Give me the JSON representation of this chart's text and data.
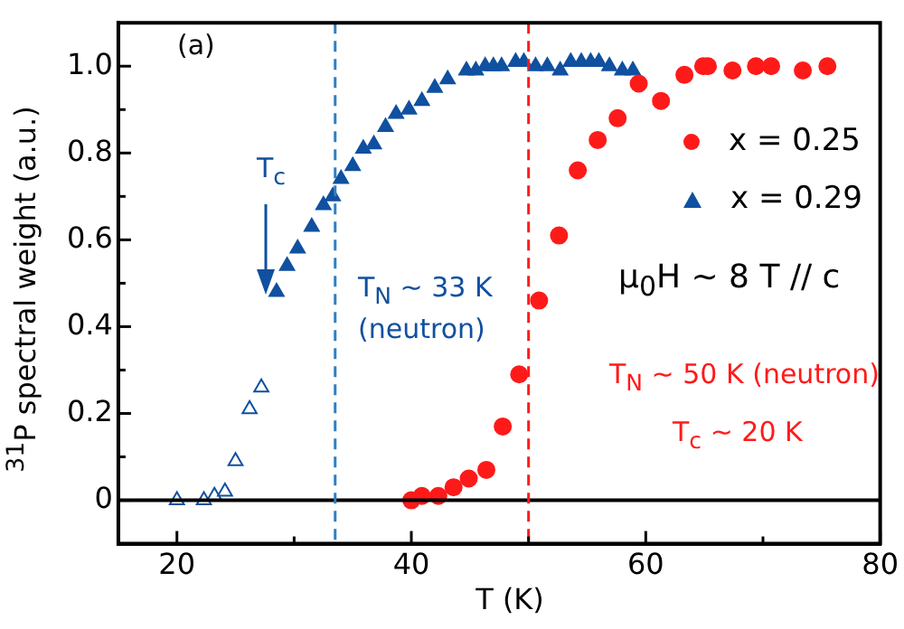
{
  "chart_data": {
    "type": "scatter",
    "xlabel": "T (K)",
    "ylabel": "$^{31}$P spectral weight (a.u.)",
    "xlim": [
      15,
      80
    ],
    "xticks": [
      20,
      {
        "value": 30,
        "label": null
      },
      40,
      {
        "value": 50,
        "label": null
      },
      60,
      {
        "value": 70,
        "label": null
      },
      80
    ],
    "ylim": [
      -0.1,
      1.1
    ],
    "yticks": [
      {
        "value": -0.1,
        "label": null
      },
      0,
      {
        "value": 0.1,
        "label": null
      },
      0.2,
      {
        "value": 0.3,
        "label": null
      },
      0.4,
      {
        "value": 0.5,
        "label": null
      },
      0.6,
      {
        "value": 0.7,
        "label": null
      },
      0.8,
      {
        "value": 0.9,
        "label": null
      },
      {
        "value": 1,
        "label": "1.0"
      }
    ],
    "grid": false,
    "legend": "right",
    "series": [
      {
        "name": "x = 0.25",
        "color": "#ff1a1a",
        "marker": "circle",
        "x": [
          40.0,
          40.9,
          42.3,
          43.6,
          44.9,
          46.4,
          47.8,
          49.2,
          50.9,
          52.6,
          54.2,
          55.9,
          57.6,
          59.4,
          61.3,
          63.3,
          64.9,
          65.3,
          67.4,
          69.4,
          70.7,
          73.4,
          75.5
        ],
        "values": [
          0.0,
          0.01,
          0.01,
          0.03,
          0.05,
          0.07,
          0.17,
          0.29,
          0.46,
          0.61,
          0.76,
          0.83,
          0.88,
          0.96,
          0.92,
          0.98,
          1.0,
          1.0,
          0.99,
          1.0,
          1.0,
          0.99,
          1.0
        ]
      },
      {
        "name": "x = 0.29",
        "color": "#1050a0",
        "marker": "triangle",
        "x": [
          28.5,
          29.4,
          30.3,
          31.5,
          32.5,
          33.3,
          34.0,
          35.0,
          35.9,
          36.8,
          37.8,
          38.7,
          39.8,
          40.9,
          42.0,
          43.1,
          44.7,
          45.5,
          46.3,
          47.0,
          47.7,
          48.9,
          49.6,
          50.6,
          51.6,
          52.7,
          53.6,
          54.5,
          55.3,
          56.0,
          56.9,
          58.0,
          58.9
        ],
        "values": [
          0.48,
          0.54,
          0.58,
          0.63,
          0.68,
          0.7,
          0.74,
          0.77,
          0.81,
          0.82,
          0.86,
          0.89,
          0.9,
          0.92,
          0.95,
          0.97,
          0.99,
          0.99,
          1.0,
          1.0,
          1.0,
          1.01,
          1.01,
          1.0,
          1.0,
          0.99,
          1.01,
          1.01,
          1.01,
          1.01,
          1.0,
          0.99,
          0.99
        ]
      },
      {
        "color": "#1050a0",
        "marker": "triangle",
        "x": [
          20.0,
          22.3,
          23.2,
          24.1,
          25.0,
          26.2,
          27.2
        ],
        "values": [
          0.0,
          0.0,
          0.01,
          0.02,
          0.09,
          0.21,
          0.26
        ]
      }
    ],
    "ref_lines": [
      {
        "axis": "y",
        "value": 0,
        "color": "#000000",
        "line_style": "solid"
      },
      {
        "axis": "x",
        "value": 33.5,
        "color": "#2f7fc1",
        "line_style": "dashed"
      },
      {
        "axis": "x",
        "value": 50,
        "color": "#ff1a1a",
        "line_style": "dashed"
      }
    ],
    "annotations": [
      "(a)",
      "T$_{c}$",
      "T$_{N}$ ~ 33 K",
      "(neutron)",
      "μ$_{0}$H ~ 8 T // c",
      "T$_{N}$ ~ 50 K  (neutron)",
      "T$_{c}$ ~ 20 K"
    ]
  }
}
